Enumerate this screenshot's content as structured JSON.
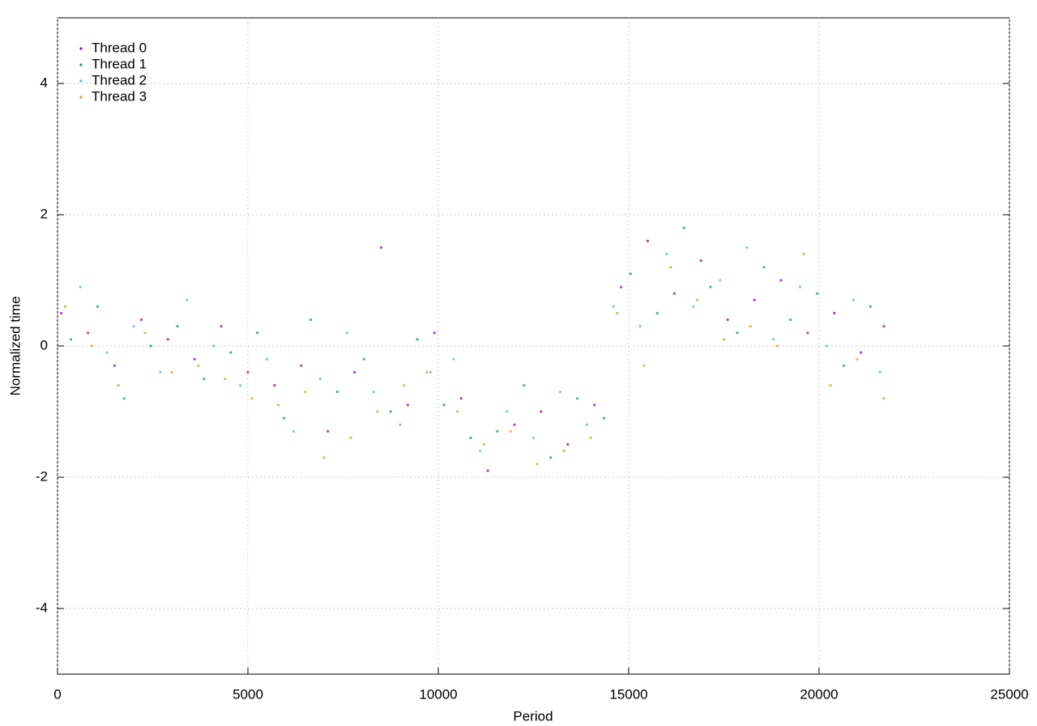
{
  "chart_data": {
    "type": "scatter",
    "xlabel": "Period",
    "ylabel": "Normalized time",
    "xlim": [
      0,
      25000
    ],
    "xticks": [
      0,
      5000,
      10000,
      15000,
      20000,
      25000
    ],
    "ylim": [
      -5,
      5
    ],
    "yticks": [
      -4,
      -2,
      0,
      2,
      4
    ],
    "grid": true,
    "legend": "top-left",
    "series": [
      {
        "name": "Thread 0",
        "color": "#9400d3",
        "x": [
          100,
          800,
          1500,
          2200,
          2900,
          3600,
          4300,
          5000,
          5700,
          6400,
          7100,
          7800,
          8500,
          9200,
          9900,
          10600,
          11300,
          12000,
          12700,
          13400,
          14100,
          14800,
          15500,
          16200,
          16900,
          17600,
          18300,
          19000,
          19700,
          20400,
          21100,
          21700
        ],
        "values": [
          0.5,
          0.2,
          -0.3,
          0.4,
          0.1,
          -0.2,
          0.3,
          -0.4,
          -0.6,
          -0.3,
          -1.3,
          -0.4,
          1.5,
          -0.9,
          0.2,
          -0.8,
          -1.9,
          -1.2,
          -1.0,
          -1.5,
          -0.9,
          0.9,
          1.6,
          0.8,
          1.3,
          0.4,
          0.7,
          1.0,
          0.2,
          0.5,
          -0.1,
          0.3
        ]
      },
      {
        "name": "Thread 1",
        "color": "#009e73",
        "x": [
          350,
          1050,
          1750,
          2450,
          3150,
          3850,
          4550,
          5250,
          5950,
          6650,
          7350,
          8050,
          8750,
          9450,
          10150,
          10850,
          11550,
          12250,
          12950,
          13650,
          14350,
          15050,
          15750,
          16450,
          17150,
          17850,
          18550,
          19250,
          19950,
          20650,
          21350
        ],
        "values": [
          0.1,
          0.6,
          -0.8,
          0.0,
          0.3,
          -0.5,
          -0.1,
          0.2,
          -1.1,
          0.4,
          -0.7,
          -0.2,
          -1.0,
          0.1,
          -0.9,
          -1.4,
          -1.3,
          -0.6,
          -1.7,
          -0.8,
          -1.1,
          1.1,
          0.5,
          1.8,
          0.9,
          0.2,
          1.2,
          0.4,
          0.8,
          -0.3,
          0.6
        ]
      },
      {
        "name": "Thread 2",
        "color": "#56b4e9",
        "x": [
          600,
          1300,
          2000,
          2700,
          3400,
          4100,
          4800,
          5500,
          6200,
          6900,
          7600,
          8300,
          9000,
          9700,
          10400,
          11100,
          11800,
          12500,
          13200,
          13900,
          14600,
          15300,
          16000,
          16700,
          17400,
          18100,
          18800,
          19500,
          20200,
          20900,
          21600
        ],
        "values": [
          0.9,
          -0.1,
          0.3,
          -0.4,
          0.7,
          0.0,
          -0.6,
          -0.2,
          -1.3,
          -0.5,
          0.2,
          -0.7,
          -1.2,
          -0.4,
          -0.2,
          -1.6,
          -1.0,
          -1.4,
          -0.7,
          -1.2,
          0.6,
          0.3,
          1.4,
          0.6,
          1.0,
          1.5,
          0.1,
          0.9,
          0.0,
          0.7,
          -0.4
        ]
      },
      {
        "name": "Thread 3",
        "color": "#e69f00",
        "x": [
          200,
          900,
          1600,
          2300,
          3000,
          3700,
          4400,
          5100,
          5800,
          6500,
          7000,
          7700,
          8400,
          9100,
          9800,
          10500,
          11200,
          11900,
          12600,
          13300,
          14000,
          14700,
          15400,
          16100,
          16800,
          17500,
          18200,
          18900,
          19600,
          20300,
          21000,
          21700
        ],
        "values": [
          0.6,
          0.0,
          -0.6,
          0.2,
          -0.4,
          -0.3,
          -0.5,
          -0.8,
          -0.9,
          -0.7,
          -1.7,
          -1.4,
          -1.0,
          -0.6,
          -0.4,
          -1.0,
          -1.5,
          -1.3,
          -1.8,
          -1.6,
          -1.4,
          0.5,
          -0.3,
          1.2,
          0.7,
          0.1,
          0.3,
          0.0,
          1.4,
          -0.6,
          -0.2,
          -0.8
        ]
      }
    ]
  }
}
